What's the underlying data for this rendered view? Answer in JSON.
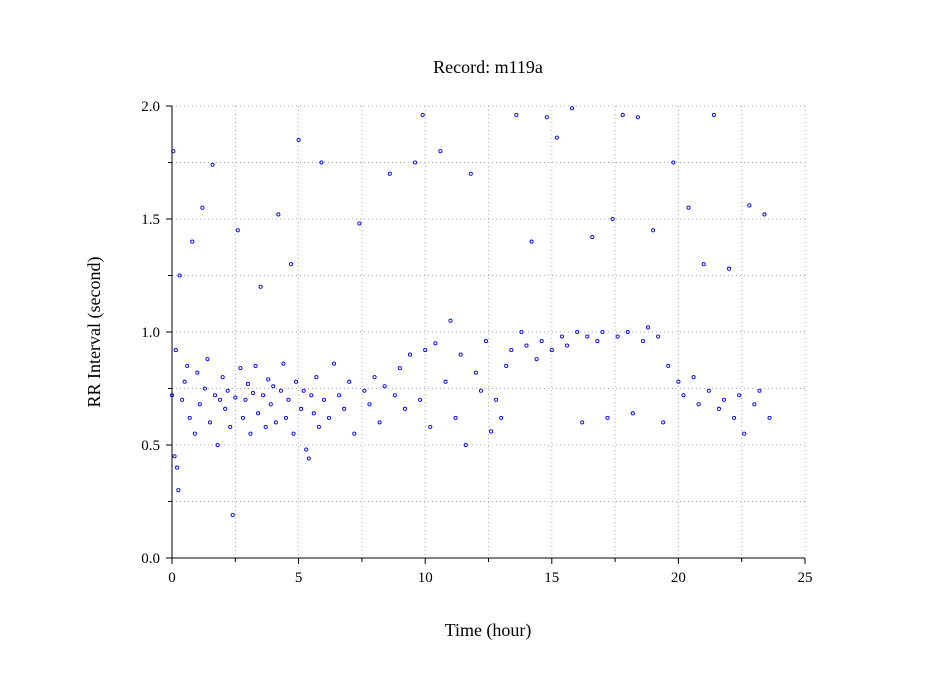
{
  "chart_data": {
    "type": "scatter",
    "title": "Record:  m119a",
    "xlabel": "Time (hour)",
    "ylabel": "RR Interval (second)",
    "xlim": [
      0,
      25
    ],
    "ylim": [
      0.0,
      2.0
    ],
    "xticks": [
      0,
      5,
      10,
      15,
      20,
      25
    ],
    "xtick_labels": [
      "0",
      "5",
      "10",
      "15",
      "20",
      "25"
    ],
    "yticks": [
      0.0,
      0.5,
      1.0,
      1.5,
      2.0
    ],
    "ytick_labels": [
      "0.0",
      "0.5",
      "1.0",
      "1.5",
      "2.0"
    ],
    "grid": true,
    "marker_color": "#0000ff",
    "marker": "open-circle",
    "series": [
      {
        "points": [
          [
            0.0,
            0.72
          ],
          [
            0.05,
            1.8
          ],
          [
            0.1,
            0.45
          ],
          [
            0.15,
            0.92
          ],
          [
            0.2,
            0.4
          ],
          [
            0.25,
            0.3
          ],
          [
            0.3,
            1.25
          ],
          [
            0.4,
            0.7
          ],
          [
            0.5,
            0.78
          ],
          [
            0.6,
            0.85
          ],
          [
            0.7,
            0.62
          ],
          [
            0.8,
            1.4
          ],
          [
            0.9,
            0.55
          ],
          [
            1.0,
            0.82
          ],
          [
            1.1,
            0.68
          ],
          [
            1.2,
            1.55
          ],
          [
            1.3,
            0.75
          ],
          [
            1.4,
            0.88
          ],
          [
            1.5,
            0.6
          ],
          [
            1.6,
            1.74
          ],
          [
            1.7,
            0.72
          ],
          [
            1.8,
            0.5
          ],
          [
            1.9,
            0.7
          ],
          [
            2.0,
            0.8
          ],
          [
            2.1,
            0.66
          ],
          [
            2.2,
            0.74
          ],
          [
            2.3,
            0.58
          ],
          [
            2.4,
            0.19
          ],
          [
            2.5,
            0.71
          ],
          [
            2.6,
            1.45
          ],
          [
            2.7,
            0.84
          ],
          [
            2.8,
            0.62
          ],
          [
            2.9,
            0.7
          ],
          [
            3.0,
            0.77
          ],
          [
            3.1,
            0.55
          ],
          [
            3.2,
            0.73
          ],
          [
            3.3,
            0.85
          ],
          [
            3.4,
            0.64
          ],
          [
            3.5,
            1.2
          ],
          [
            3.6,
            0.72
          ],
          [
            3.7,
            0.58
          ],
          [
            3.8,
            0.79
          ],
          [
            3.9,
            0.68
          ],
          [
            4.0,
            0.76
          ],
          [
            4.1,
            0.6
          ],
          [
            4.2,
            1.52
          ],
          [
            4.3,
            0.74
          ],
          [
            4.4,
            0.86
          ],
          [
            4.5,
            0.62
          ],
          [
            4.6,
            0.7
          ],
          [
            4.7,
            1.3
          ],
          [
            4.8,
            0.55
          ],
          [
            4.9,
            0.78
          ],
          [
            5.0,
            1.85
          ],
          [
            5.1,
            0.66
          ],
          [
            5.2,
            0.74
          ],
          [
            5.3,
            0.48
          ],
          [
            5.4,
            0.44
          ],
          [
            5.5,
            0.72
          ],
          [
            5.6,
            0.64
          ],
          [
            5.7,
            0.8
          ],
          [
            5.8,
            0.58
          ],
          [
            5.9,
            1.75
          ],
          [
            6.0,
            0.7
          ],
          [
            6.2,
            0.62
          ],
          [
            6.4,
            0.86
          ],
          [
            6.6,
            0.72
          ],
          [
            6.8,
            0.66
          ],
          [
            7.0,
            0.78
          ],
          [
            7.2,
            0.55
          ],
          [
            7.4,
            1.48
          ],
          [
            7.6,
            0.74
          ],
          [
            7.8,
            0.68
          ],
          [
            8.0,
            0.8
          ],
          [
            8.2,
            0.6
          ],
          [
            8.4,
            0.76
          ],
          [
            8.6,
            1.7
          ],
          [
            8.8,
            0.72
          ],
          [
            9.0,
            0.84
          ],
          [
            9.2,
            0.66
          ],
          [
            9.4,
            0.9
          ],
          [
            9.6,
            1.75
          ],
          [
            9.8,
            0.7
          ],
          [
            9.9,
            1.96
          ],
          [
            10.0,
            0.92
          ],
          [
            10.2,
            0.58
          ],
          [
            10.4,
            0.95
          ],
          [
            10.6,
            1.8
          ],
          [
            10.8,
            0.78
          ],
          [
            11.0,
            1.05
          ],
          [
            11.2,
            0.62
          ],
          [
            11.4,
            0.9
          ],
          [
            11.6,
            0.5
          ],
          [
            11.8,
            1.7
          ],
          [
            12.0,
            0.82
          ],
          [
            12.2,
            0.74
          ],
          [
            12.4,
            0.96
          ],
          [
            12.6,
            0.56
          ],
          [
            12.8,
            0.7
          ],
          [
            13.0,
            0.62
          ],
          [
            13.2,
            0.85
          ],
          [
            13.4,
            0.92
          ],
          [
            13.6,
            1.96
          ],
          [
            13.8,
            1.0
          ],
          [
            14.0,
            0.94
          ],
          [
            14.2,
            1.4
          ],
          [
            14.4,
            0.88
          ],
          [
            14.6,
            0.96
          ],
          [
            14.8,
            1.95
          ],
          [
            15.0,
            0.92
          ],
          [
            15.2,
            1.86
          ],
          [
            15.4,
            0.98
          ],
          [
            15.6,
            0.94
          ],
          [
            15.8,
            1.99
          ],
          [
            16.0,
            1.0
          ],
          [
            16.2,
            0.6
          ],
          [
            16.4,
            0.98
          ],
          [
            16.6,
            1.42
          ],
          [
            16.8,
            0.96
          ],
          [
            17.0,
            1.0
          ],
          [
            17.2,
            0.62
          ],
          [
            17.4,
            1.5
          ],
          [
            17.6,
            0.98
          ],
          [
            17.8,
            1.96
          ],
          [
            18.0,
            1.0
          ],
          [
            18.2,
            0.64
          ],
          [
            18.4,
            1.95
          ],
          [
            18.6,
            0.96
          ],
          [
            18.8,
            1.02
          ],
          [
            19.0,
            1.45
          ],
          [
            19.2,
            0.98
          ],
          [
            19.4,
            0.6
          ],
          [
            19.6,
            0.85
          ],
          [
            19.8,
            1.75
          ],
          [
            20.0,
            0.78
          ],
          [
            20.2,
            0.72
          ],
          [
            20.4,
            1.55
          ],
          [
            20.6,
            0.8
          ],
          [
            20.8,
            0.68
          ],
          [
            21.0,
            1.3
          ],
          [
            21.2,
            0.74
          ],
          [
            21.4,
            1.96
          ],
          [
            21.6,
            0.66
          ],
          [
            21.8,
            0.7
          ],
          [
            22.0,
            1.28
          ],
          [
            22.2,
            0.62
          ],
          [
            22.4,
            0.72
          ],
          [
            22.6,
            0.55
          ],
          [
            22.8,
            1.56
          ],
          [
            23.0,
            0.68
          ],
          [
            23.2,
            0.74
          ],
          [
            23.4,
            1.52
          ],
          [
            23.6,
            0.62
          ]
        ]
      }
    ]
  }
}
